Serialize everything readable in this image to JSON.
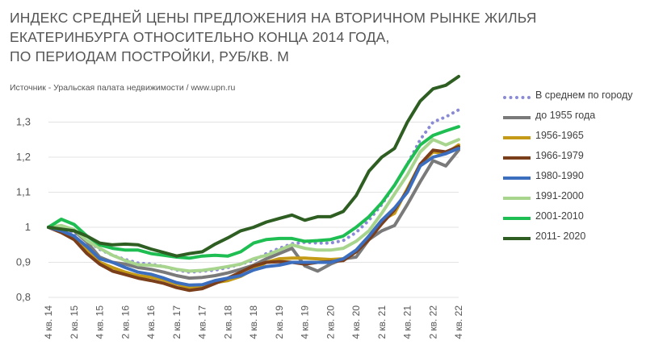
{
  "title_lines": [
    "ИНДЕКС СРЕДНЕЙ ЦЕНЫ ПРЕДЛОЖЕНИЯ НА ВТОРИЧНОМ РЫНКЕ ЖИЛЬЯ",
    "ЕКАТЕРИНБУРГА ОТНОСИТЕЛЬНО КОНЦА 2014 ГОДА,",
    "ПО ПЕРИОДАМ ПОСТРОЙКИ, РУБ/КВ. М"
  ],
  "source": "Источник - Уральская палата недвижимости / www.upn.ru",
  "chart_data": {
    "type": "line",
    "ylim": [
      0.8,
      1.4
    ],
    "yticks": [
      0.8,
      0.9,
      1.0,
      1.1,
      1.2,
      1.3
    ],
    "ytick_labels": [
      "0,8",
      "0,9",
      "1",
      "1,1",
      "1,2",
      "1,3"
    ],
    "grid": true,
    "legend_position": "right",
    "x": [
      "4 кв. 14",
      "1 кв. 15",
      "2 кв. 15",
      "3 кв. 15",
      "4 кв. 15",
      "1 кв. 16",
      "2 кв. 16",
      "3 кв. 16",
      "4 кв. 16",
      "1 кв. 17",
      "2 кв. 17",
      "3 кв. 17",
      "4 кв. 17",
      "1 кв. 18",
      "2 кв. 18",
      "3 кв. 18",
      "4 кв. 18",
      "1 кв. 19",
      "2 кв. 19",
      "3 кв. 19",
      "4 кв. 19",
      "1 кв. 20",
      "2 кв. 20",
      "3 кв. 20",
      "4 кв. 20",
      "1 кв. 21",
      "2 кв. 21",
      "3 кв. 21",
      "4 кв. 21",
      "1 кв. 22",
      "2 кв. 22",
      "3 кв. 22",
      "4 кв. 22"
    ],
    "xtick_labels": [
      "4 кв. 14",
      "2 кв. 15",
      "4 кв. 15",
      "2 кв. 16",
      "4 кв. 16",
      "2 кв. 17",
      "4 кв. 17",
      "2 кв. 18",
      "4 кв. 18",
      "2 кв. 19",
      "4 кв. 19",
      "2 кв. 20",
      "4 кв. 20",
      "2 кв. 21",
      "4 кв. 21",
      "2 кв. 22",
      "4 кв. 22"
    ],
    "series": [
      {
        "name": "В среднем по городу",
        "color": "#8a8ad6",
        "dotted": true,
        "values": [
          1.0,
          0.993,
          0.985,
          0.962,
          0.937,
          0.92,
          0.908,
          0.898,
          0.895,
          0.888,
          0.878,
          0.872,
          0.875,
          0.878,
          0.885,
          0.895,
          0.905,
          0.925,
          0.94,
          0.953,
          0.957,
          0.955,
          0.955,
          0.962,
          0.985,
          1.02,
          1.065,
          1.12,
          1.18,
          1.25,
          1.3,
          1.315,
          1.335
        ]
      },
      {
        "name": "до 1955 года",
        "color": "#7a7a7a",
        "values": [
          1.0,
          0.995,
          0.99,
          0.958,
          0.915,
          0.9,
          0.895,
          0.885,
          0.88,
          0.872,
          0.862,
          0.855,
          0.857,
          0.862,
          0.87,
          0.88,
          0.892,
          0.91,
          0.925,
          0.94,
          0.89,
          0.875,
          0.895,
          0.91,
          0.915,
          0.965,
          0.99,
          1.005,
          1.065,
          1.13,
          1.19,
          1.175,
          1.22
        ]
      },
      {
        "name": "1956-1965",
        "color": "#c49a17",
        "values": [
          1.0,
          0.99,
          0.97,
          0.935,
          0.9,
          0.885,
          0.872,
          0.862,
          0.858,
          0.85,
          0.838,
          0.828,
          0.832,
          0.842,
          0.848,
          0.86,
          0.88,
          0.9,
          0.91,
          0.912,
          0.912,
          0.91,
          0.908,
          0.91,
          0.93,
          0.975,
          1.02,
          1.04,
          1.11,
          1.18,
          1.215,
          1.21,
          1.235
        ]
      },
      {
        "name": "1966-1979",
        "color": "#7a3e1a",
        "values": [
          1.0,
          0.985,
          0.965,
          0.925,
          0.895,
          0.875,
          0.865,
          0.855,
          0.848,
          0.84,
          0.828,
          0.82,
          0.825,
          0.84,
          0.855,
          0.872,
          0.89,
          0.9,
          0.902,
          0.9,
          0.895,
          0.9,
          0.902,
          0.905,
          0.93,
          0.965,
          1.01,
          1.05,
          1.105,
          1.18,
          1.22,
          1.215,
          1.23
        ]
      },
      {
        "name": "1980-1990",
        "color": "#3c6ebf",
        "values": [
          1.0,
          0.99,
          0.975,
          0.945,
          0.91,
          0.9,
          0.885,
          0.872,
          0.866,
          0.855,
          0.842,
          0.835,
          0.836,
          0.848,
          0.855,
          0.862,
          0.878,
          0.888,
          0.892,
          0.9,
          0.9,
          0.9,
          0.9,
          0.91,
          0.935,
          0.975,
          1.02,
          1.055,
          1.1,
          1.175,
          1.2,
          1.21,
          1.225
        ]
      },
      {
        "name": "1991-2000",
        "color": "#a8d58e",
        "values": [
          1.0,
          1.005,
          0.993,
          0.962,
          0.94,
          0.92,
          0.905,
          0.893,
          0.892,
          0.888,
          0.88,
          0.875,
          0.877,
          0.882,
          0.888,
          0.895,
          0.91,
          0.92,
          0.935,
          0.95,
          0.94,
          0.935,
          0.935,
          0.94,
          0.96,
          0.99,
          1.04,
          1.095,
          1.15,
          1.215,
          1.25,
          1.235,
          1.25
        ]
      },
      {
        "name": "2001-2010",
        "color": "#1fbe52",
        "values": [
          1.0,
          1.023,
          1.008,
          0.975,
          0.95,
          0.94,
          0.935,
          0.935,
          0.925,
          0.92,
          0.915,
          0.912,
          0.918,
          0.92,
          0.918,
          0.93,
          0.955,
          0.965,
          0.968,
          0.968,
          0.96,
          0.962,
          0.965,
          0.975,
          1.0,
          1.03,
          1.07,
          1.12,
          1.18,
          1.235,
          1.262,
          1.275,
          1.287
        ]
      },
      {
        "name": "2011- 2020",
        "color": "#2e5e22",
        "values": [
          1.0,
          0.995,
          0.99,
          0.975,
          0.955,
          0.95,
          0.952,
          0.95,
          0.938,
          0.928,
          0.918,
          0.925,
          0.93,
          0.952,
          0.97,
          0.99,
          1.0,
          1.015,
          1.025,
          1.035,
          1.02,
          1.03,
          1.03,
          1.045,
          1.09,
          1.16,
          1.2,
          1.225,
          1.3,
          1.36,
          1.395,
          1.405,
          1.43
        ]
      }
    ]
  }
}
